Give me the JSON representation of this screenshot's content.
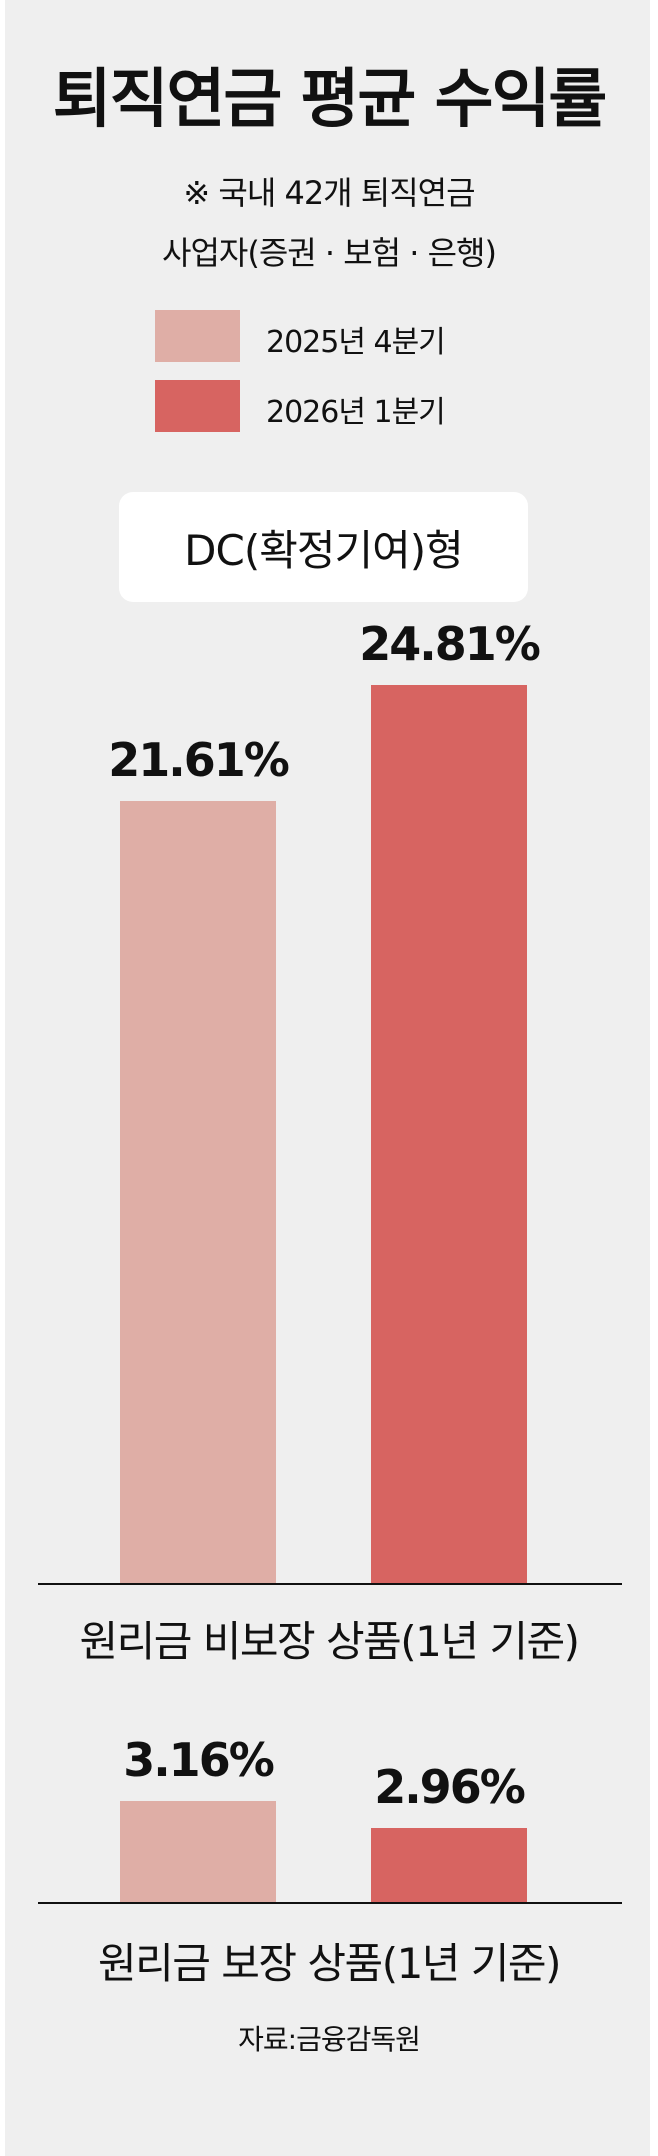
{
  "chart_data": {
    "type": "bar",
    "title": "퇴직연금 평균 수익률",
    "note_line1": "※ 국내 42개 퇴직연금",
    "note_line2": "사업자(증권 · 보험 · 은행)",
    "section_title": "DC(확정기여)형",
    "legend": [
      "2025년 4분기",
      "2026년 1분기"
    ],
    "colors": [
      "#dfaea6",
      "#d76461"
    ],
    "categories": [
      "원리금 비보장 상품(1년 기준)",
      "원리금 보장 상품(1년 기준)"
    ],
    "series": [
      {
        "name": "2025년 4분기",
        "values": [
          21.61,
          3.16
        ],
        "labels": [
          "21.61%",
          "3.16%"
        ]
      },
      {
        "name": "2026년 1분기",
        "values": [
          24.81,
          2.96
        ],
        "labels": [
          "24.81%",
          "2.96%"
        ]
      }
    ],
    "unit": "%",
    "source": "자료:금융감독원"
  }
}
